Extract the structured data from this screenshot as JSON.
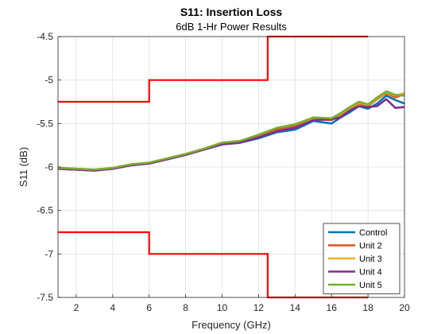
{
  "chart_data": {
    "type": "line",
    "title": "S11: Insertion Loss",
    "subtitle": "6dB 1-Hr Power Results",
    "xlabel": "Frequency (GHz)",
    "ylabel": "S11 (dB)",
    "xlim": [
      1,
      20
    ],
    "ylim": [
      -7.5,
      -4.5
    ],
    "x_ticks": [
      2,
      4,
      6,
      8,
      10,
      12,
      14,
      16,
      18,
      20
    ],
    "y_ticks": [
      -4.5,
      -5,
      -5.5,
      -6,
      -6.5,
      -7,
      -7.5
    ],
    "grid": true,
    "legend_position": "bottom-right",
    "series": [
      {
        "name": "Control",
        "color": "#0072BD",
        "x": [
          1,
          2,
          3,
          4,
          5,
          6,
          7,
          8,
          9,
          10,
          11,
          12,
          13,
          14,
          15,
          16,
          16.5,
          17,
          17.5,
          18,
          18.5,
          19,
          19.5,
          20
        ],
        "y": [
          -6.02,
          -6.03,
          -6.04,
          -6.02,
          -5.98,
          -5.96,
          -5.91,
          -5.86,
          -5.8,
          -5.74,
          -5.72,
          -5.67,
          -5.6,
          -5.57,
          -5.47,
          -5.5,
          -5.43,
          -5.37,
          -5.3,
          -5.33,
          -5.27,
          -5.18,
          -5.23,
          -5.27
        ]
      },
      {
        "name": "Unit 2",
        "color": "#D95319",
        "x": [
          1,
          2,
          3,
          4,
          5,
          6,
          7,
          8,
          9,
          10,
          11,
          12,
          13,
          14,
          15,
          16,
          16.5,
          17,
          17.5,
          18,
          18.5,
          19,
          19.5,
          20
        ],
        "y": [
          -6.02,
          -6.03,
          -6.04,
          -6.02,
          -5.98,
          -5.96,
          -5.91,
          -5.86,
          -5.8,
          -5.73,
          -5.71,
          -5.65,
          -5.57,
          -5.53,
          -5.45,
          -5.46,
          -5.4,
          -5.33,
          -5.27,
          -5.3,
          -5.22,
          -5.15,
          -5.2,
          -5.16
        ]
      },
      {
        "name": "Unit 3",
        "color": "#EDB120",
        "x": [
          1,
          2,
          3,
          4,
          5,
          6,
          7,
          8,
          9,
          10,
          11,
          12,
          13,
          14,
          15,
          16,
          16.5,
          17,
          17.5,
          18,
          18.5,
          19,
          19.5,
          20
        ],
        "y": [
          -6.01,
          -6.02,
          -6.03,
          -6.01,
          -5.97,
          -5.95,
          -5.9,
          -5.85,
          -5.79,
          -5.72,
          -5.7,
          -5.63,
          -5.55,
          -5.51,
          -5.44,
          -5.44,
          -5.39,
          -5.32,
          -5.26,
          -5.29,
          -5.21,
          -5.14,
          -5.18,
          -5.15
        ]
      },
      {
        "name": "Unit 4",
        "color": "#7E2F8E",
        "x": [
          1,
          2,
          3,
          4,
          5,
          6,
          7,
          8,
          9,
          10,
          11,
          12,
          13,
          14,
          15,
          16,
          16.5,
          17,
          17.5,
          18,
          18.5,
          19,
          19.5,
          20
        ],
        "y": [
          -6.02,
          -6.03,
          -6.04,
          -6.02,
          -5.98,
          -5.96,
          -5.91,
          -5.86,
          -5.8,
          -5.74,
          -5.72,
          -5.66,
          -5.59,
          -5.55,
          -5.46,
          -5.45,
          -5.43,
          -5.35,
          -5.3,
          -5.31,
          -5.3,
          -5.22,
          -5.32,
          -5.31
        ]
      },
      {
        "name": "Unit 5",
        "color": "#77AC30",
        "x": [
          1,
          2,
          3,
          4,
          5,
          6,
          7,
          8,
          9,
          10,
          11,
          12,
          13,
          14,
          15,
          16,
          16.5,
          17,
          17.5,
          18,
          18.5,
          19,
          19.5,
          20
        ],
        "y": [
          -6.01,
          -6.02,
          -6.03,
          -6.01,
          -5.97,
          -5.95,
          -5.9,
          -5.85,
          -5.79,
          -5.72,
          -5.7,
          -5.63,
          -5.55,
          -5.51,
          -5.43,
          -5.44,
          -5.38,
          -5.31,
          -5.25,
          -5.28,
          -5.2,
          -5.13,
          -5.17,
          -5.18
        ]
      },
      {
        "color": "#FF0000",
        "x": [
          1,
          6,
          6,
          12.5,
          12.5,
          18
        ],
        "y": [
          -5.25,
          -5.25,
          -5.0,
          -5.0,
          -4.5,
          -4.5
        ]
      },
      {
        "color": "#FF0000",
        "x": [
          1,
          6,
          6,
          12.5,
          12.5,
          18
        ],
        "y": [
          -6.75,
          -6.75,
          -7.0,
          -7.0,
          -7.5,
          -7.5
        ]
      }
    ]
  }
}
